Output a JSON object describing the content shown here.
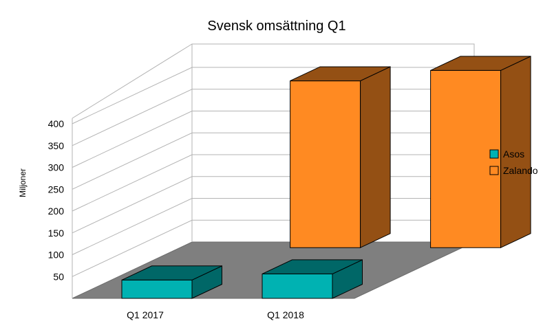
{
  "chart_data": {
    "type": "bar",
    "title": "Svensk omsättning Q1",
    "ylabel": "Miljoner",
    "xlabel": "",
    "categories": [
      "Q1 2017",
      "Q1 2018"
    ],
    "series": [
      {
        "name": "Asos",
        "values": [
          42,
          56
        ],
        "color": "#00b2b2"
      },
      {
        "name": "Zalando",
        "values": [
          382,
          406
        ],
        "color": "#ff8a22"
      }
    ],
    "ylim": [
      0,
      400
    ],
    "yticks": [
      50,
      100,
      150,
      200,
      250,
      300,
      350,
      400
    ],
    "grid": true,
    "legend_position": "right",
    "three_d": true,
    "floor_color": "#7f7f7f"
  }
}
